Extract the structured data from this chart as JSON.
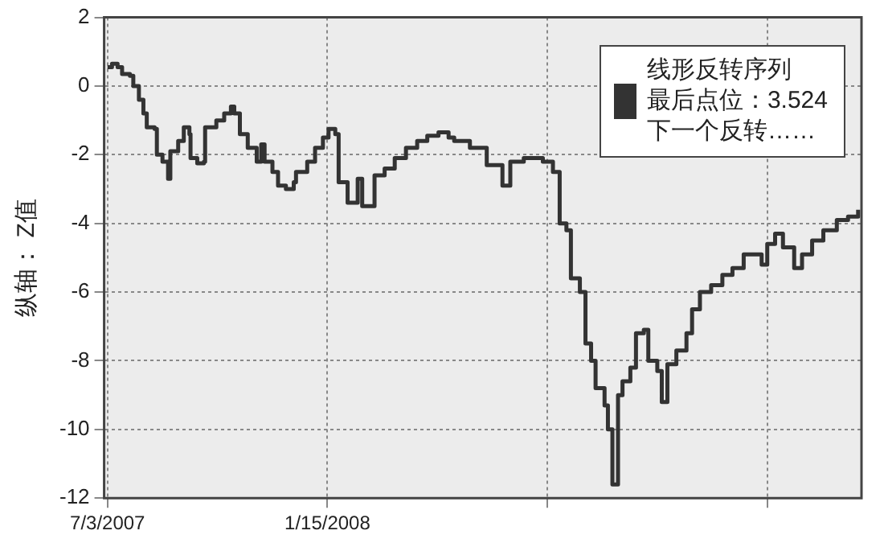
{
  "chart_data": {
    "type": "step",
    "ylabel": "纵轴： Z值",
    "x": [
      "2007-07-03",
      "2007-07-07",
      "2007-07-12",
      "2007-07-16",
      "2007-07-23",
      "2007-07-26",
      "2007-07-31",
      "2007-08-04",
      "2007-08-07",
      "2007-08-14",
      "2007-08-16",
      "2007-08-21",
      "2007-08-26",
      "2007-08-28",
      "2007-09-04",
      "2007-09-09",
      "2007-09-14",
      "2007-09-15",
      "2007-09-21",
      "2007-09-27",
      "2007-09-28",
      "2007-10-08",
      "2007-10-15",
      "2007-10-21",
      "2007-10-24",
      "2007-10-29",
      "2007-11-05",
      "2007-11-13",
      "2007-11-17",
      "2007-11-20",
      "2007-11-27",
      "2007-12-02",
      "2007-12-09",
      "2007-12-16",
      "2007-12-18",
      "2007-12-28",
      "2008-01-04",
      "2008-01-11",
      "2008-01-16",
      "2008-01-22",
      "2008-01-25",
      "2008-02-02",
      "2008-02-09",
      "2008-02-11",
      "2008-02-15",
      "2008-02-25",
      "2008-02-26",
      "2008-03-06",
      "2008-03-15",
      "2008-03-25",
      "2008-04-04",
      "2008-04-13",
      "2008-04-23",
      "2008-05-02",
      "2008-05-07",
      "2008-05-21",
      "2008-06-05",
      "2008-06-19",
      "2008-06-26",
      "2008-07-08",
      "2008-07-25",
      "2008-08-03",
      "2008-08-09",
      "2008-08-15",
      "2008-08-19",
      "2008-08-27",
      "2008-09-01",
      "2008-09-06",
      "2008-09-10",
      "2008-09-18",
      "2008-09-21",
      "2008-09-25",
      "2008-09-30",
      "2008-10-04",
      "2008-10-11",
      "2008-10-16",
      "2008-10-23",
      "2008-10-27",
      "2008-11-04",
      "2008-11-08",
      "2008-11-13",
      "2008-11-21",
      "2008-11-30",
      "2008-12-05",
      "2008-12-12",
      "2008-12-22",
      "2009-01-01",
      "2009-01-10",
      "2009-01-20",
      "2009-01-29",
      "2009-02-05",
      "2009-02-10",
      "2009-02-17",
      "2009-02-24",
      "2009-03-06",
      "2009-03-13",
      "2009-03-22",
      "2009-04-01",
      "2009-04-11",
      "2009-04-13",
      "2009-04-23",
      "2009-05-02"
    ],
    "series": [
      {
        "name": "线形反转序列",
        "color": "#333333",
        "values": [
          0.55,
          0.65,
          0.55,
          0.35,
          0.3,
          0,
          -0.4,
          -0.8,
          -1.2,
          -1.25,
          -2.0,
          -2.2,
          -2.7,
          -1.9,
          -1.6,
          -1.2,
          -1.4,
          -2.1,
          -2.25,
          -2.2,
          -1.2,
          -1.0,
          -0.8,
          -0.6,
          -0.8,
          -1.4,
          -1.8,
          -2.2,
          -1.7,
          -2.2,
          -2.5,
          -2.9,
          -3.0,
          -2.8,
          -2.5,
          -2.2,
          -1.8,
          -1.5,
          -1.25,
          -1.4,
          -2.8,
          -3.4,
          -3.4,
          -2.7,
          -3.5,
          -3.5,
          -2.6,
          -2.4,
          -2.1,
          -1.8,
          -1.6,
          -1.45,
          -1.35,
          -1.5,
          -1.6,
          -1.8,
          -2.3,
          -2.9,
          -2.2,
          -2.1,
          -2.2,
          -2.5,
          -4.0,
          -4.2,
          -5.6,
          -6.0,
          -7.5,
          -8.0,
          -8.8,
          -9.3,
          -10.0,
          -11.6,
          -9.0,
          -8.6,
          -8.2,
          -7.2,
          -7.1,
          -8.0,
          -8.3,
          -9.2,
          -8.1,
          -7.7,
          -7.2,
          -6.5,
          -6.0,
          -5.8,
          -5.5,
          -5.3,
          -4.9,
          -4.9,
          -5.2,
          -4.6,
          -4.3,
          -4.7,
          -5.3,
          -4.9,
          -4.5,
          -4.2,
          -4.2,
          -3.9,
          -3.8,
          -3.6
        ]
      }
    ],
    "annotations": [
      "最后点位：3.524",
      "下一个反转……"
    ],
    "xlim": [
      "2007-06-30",
      "2009-05-05"
    ],
    "xticks": [
      {
        "value": "2007-07-03",
        "label": "7/3/2007"
      },
      {
        "value": "2008-01-15",
        "label": "1/15/2008"
      },
      {
        "value": "2008-07-29",
        "label": null
      },
      {
        "value": "2009-02-10",
        "label": null
      }
    ],
    "ylim": [
      -12,
      2
    ],
    "yticks": [
      -12,
      -10,
      -8,
      -6,
      -4,
      -2,
      0,
      2
    ],
    "grid": true,
    "legend": "top right",
    "marker": "none",
    "line_style": "solid"
  }
}
